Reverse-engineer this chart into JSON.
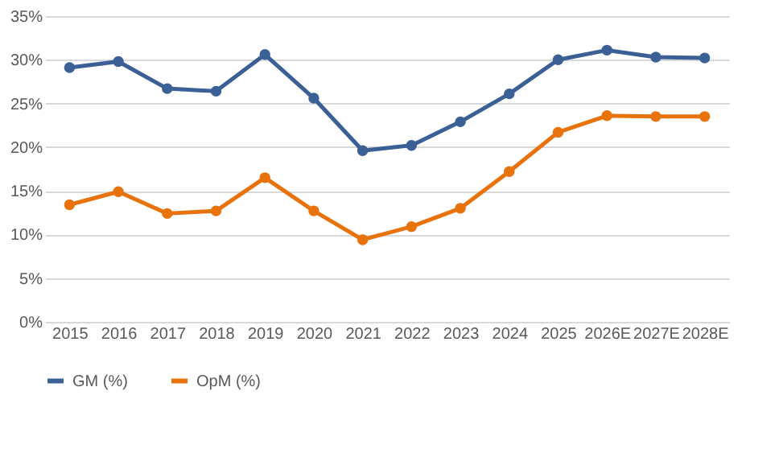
{
  "chart_data": {
    "type": "line",
    "categories": [
      "2015",
      "2016",
      "2017",
      "2018",
      "2019",
      "2020",
      "2021",
      "2022",
      "2023",
      "2024",
      "2025",
      "2026E",
      "2027E",
      "2028E"
    ],
    "series": [
      {
        "name": "GM (%)",
        "color": "#3a6095",
        "values": [
          29.1,
          29.8,
          26.7,
          26.4,
          30.6,
          25.6,
          19.6,
          20.2,
          22.9,
          26.1,
          30.0,
          31.1,
          30.3,
          30.2
        ]
      },
      {
        "name": "OpM (%)",
        "color": "#e8720c",
        "values": [
          13.4,
          14.9,
          12.4,
          12.7,
          16.5,
          12.7,
          9.4,
          10.9,
          13.0,
          17.2,
          21.7,
          23.6,
          23.5,
          23.5
        ]
      }
    ],
    "ylim": [
      0,
      35
    ],
    "yticks": [
      {
        "value": 0,
        "label": "0%"
      },
      {
        "value": 5,
        "label": "5%"
      },
      {
        "value": 10,
        "label": "10%"
      },
      {
        "value": 15,
        "label": "15%"
      },
      {
        "value": 20,
        "label": "20%"
      },
      {
        "value": 25,
        "label": "25%"
      },
      {
        "value": 30,
        "label": "30%"
      },
      {
        "value": 35,
        "label": "35%"
      }
    ],
    "grid": "y",
    "legend": "bottom",
    "marker": "circle",
    "line_style": "solid"
  }
}
